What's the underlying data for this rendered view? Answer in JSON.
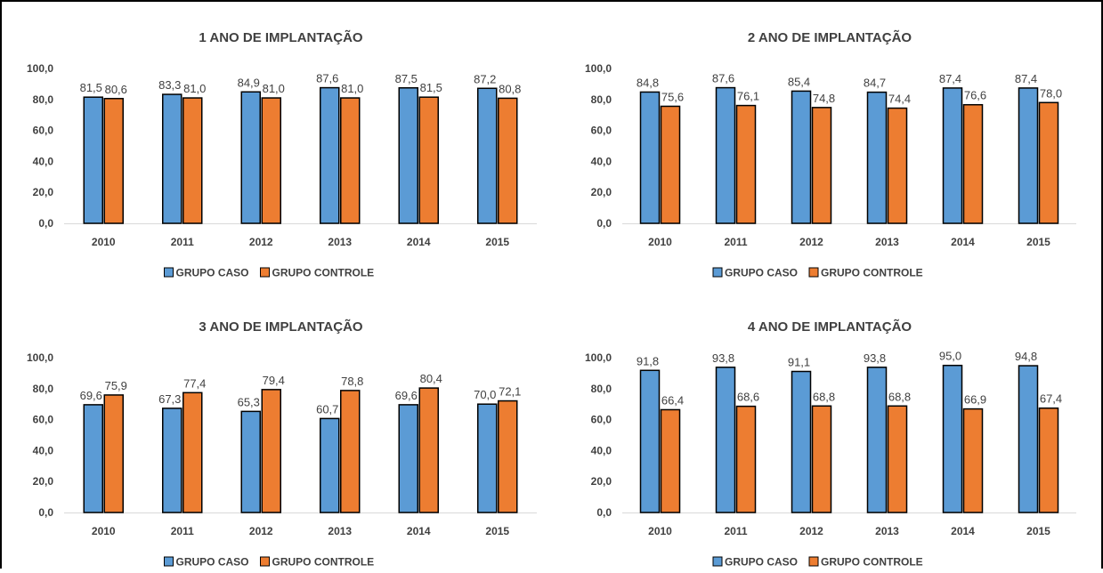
{
  "colors": {
    "case": "#5b9bd5",
    "control": "#ed7d31",
    "bar_stroke": "#000000",
    "text": "#404040",
    "axis": "#d9d9d9",
    "frame": "#000000"
  },
  "chart_data": [
    {
      "type": "bar",
      "title": "1 ANO DE IMPLANTAÇÃO",
      "categories": [
        "2010",
        "2011",
        "2012",
        "2013",
        "2014",
        "2015"
      ],
      "series": [
        {
          "name": "GRUPO CASO",
          "values": [
            81.5,
            83.3,
            84.9,
            87.6,
            87.5,
            87.2
          ],
          "labels": [
            "81,5",
            "83,3",
            "84,9",
            "87,6",
            "87,5",
            "87,2"
          ]
        },
        {
          "name": "GRUPO CONTROLE",
          "values": [
            80.6,
            81.0,
            81.0,
            81.0,
            81.5,
            80.8
          ],
          "labels": [
            "80,6",
            "81,0",
            "81,0",
            "81,0",
            "81,5",
            "80,8"
          ]
        }
      ],
      "yticks": [
        "0,0",
        "20,0",
        "40,0",
        "60,0",
        "80,0",
        "100,0"
      ],
      "ylim": [
        0,
        100
      ],
      "grid": false,
      "legend": "bottom"
    },
    {
      "type": "bar",
      "title": "2 ANO DE IMPLANTAÇÃO",
      "categories": [
        "2010",
        "2011",
        "2012",
        "2013",
        "2014",
        "2015"
      ],
      "series": [
        {
          "name": "GRUPO CASO",
          "values": [
            84.8,
            87.6,
            85.4,
            84.7,
            87.4,
            87.4
          ],
          "labels": [
            "84,8",
            "87,6",
            "85,4",
            "84,7",
            "87,4",
            "87,4"
          ]
        },
        {
          "name": "GRUPO CONTROLE",
          "values": [
            75.6,
            76.1,
            74.8,
            74.4,
            76.6,
            78.0
          ],
          "labels": [
            "75,6",
            "76,1",
            "74,8",
            "74,4",
            "76,6",
            "78,0"
          ]
        }
      ],
      "yticks": [
        "0,0",
        "20,0",
        "40,0",
        "60,0",
        "80,0",
        "100,0"
      ],
      "ylim": [
        0,
        100
      ],
      "grid": false,
      "legend": "bottom"
    },
    {
      "type": "bar",
      "title": "3 ANO DE IMPLANTAÇÃO",
      "categories": [
        "2010",
        "2011",
        "2012",
        "2013",
        "2014",
        "2015"
      ],
      "series": [
        {
          "name": "GRUPO CASO",
          "values": [
            69.6,
            67.3,
            65.3,
            60.7,
            69.6,
            70.0
          ],
          "labels": [
            "69,6",
            "67,3",
            "65,3",
            "60,7",
            "69,6",
            "70,0"
          ]
        },
        {
          "name": "GRUPO CONTROLE",
          "values": [
            75.9,
            77.4,
            79.4,
            78.8,
            80.4,
            72.1
          ],
          "labels": [
            "75,9",
            "77,4",
            "79,4",
            "78,8",
            "80,4",
            "72,1"
          ]
        }
      ],
      "yticks": [
        "0,0",
        "20,0",
        "40,0",
        "60,0",
        "80,0",
        "100,0"
      ],
      "ylim": [
        0,
        100
      ],
      "grid": false,
      "legend": "bottom"
    },
    {
      "type": "bar",
      "title": "4 ANO DE IMPLANTAÇÃO",
      "categories": [
        "2010",
        "2011",
        "2012",
        "2013",
        "2014",
        "2015"
      ],
      "series": [
        {
          "name": "GRUPO CASO",
          "values": [
            91.8,
            93.8,
            91.1,
            93.8,
            95.0,
            94.8
          ],
          "labels": [
            "91,8",
            "93,8",
            "91,1",
            "93,8",
            "95,0",
            "94,8"
          ]
        },
        {
          "name": "GRUPO CONTROLE",
          "values": [
            66.4,
            68.6,
            68.8,
            68.8,
            66.9,
            67.4
          ],
          "labels": [
            "66,4",
            "68,6",
            "68,8",
            "68,8",
            "66,9",
            "67,4"
          ]
        }
      ],
      "yticks": [
        "0,0",
        "20,0",
        "40,0",
        "60,0",
        "80,0",
        "100,0"
      ],
      "ylim": [
        0,
        100
      ],
      "grid": false,
      "legend": "bottom"
    }
  ]
}
